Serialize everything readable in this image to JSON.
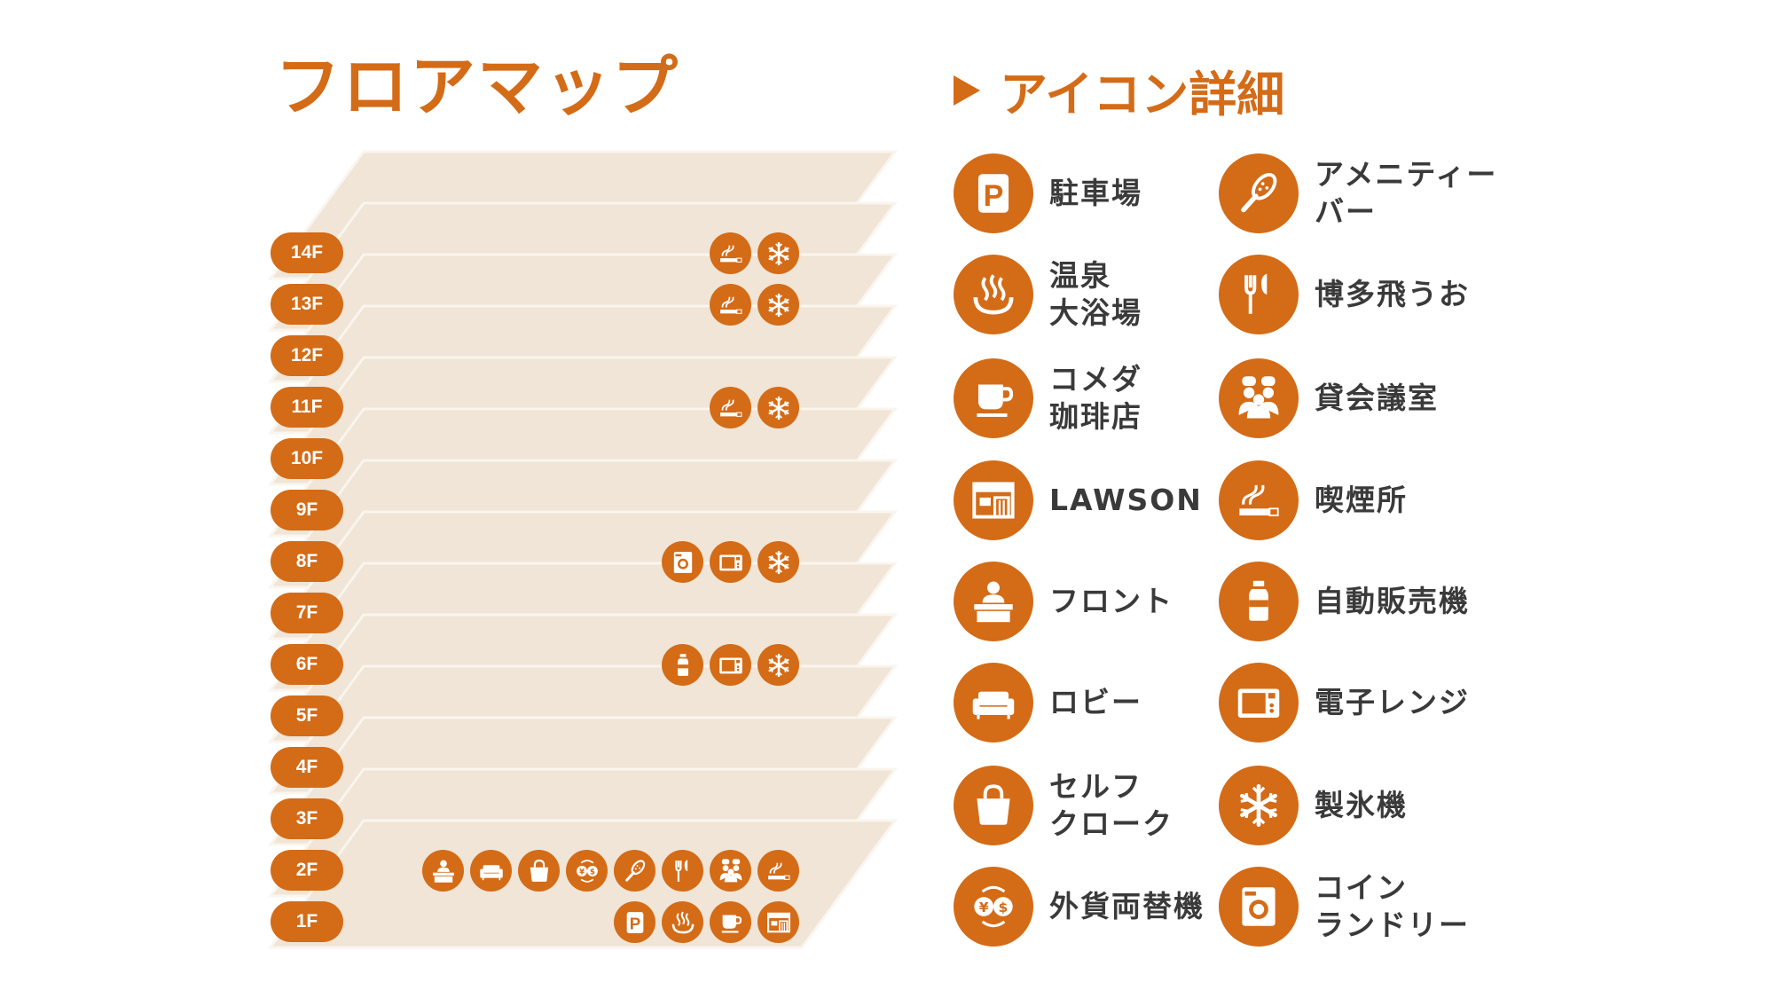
{
  "title": "フロアマップ",
  "legend_title": "アイコン詳細",
  "colors": {
    "accent": "#d46b17",
    "plate": "#f0e5d6",
    "text": "#3a3a3a"
  },
  "floors": [
    {
      "label": "14F",
      "icons": [
        "smoking",
        "ice"
      ]
    },
    {
      "label": "13F",
      "icons": [
        "smoking",
        "ice"
      ]
    },
    {
      "label": "12F",
      "icons": []
    },
    {
      "label": "11F",
      "icons": [
        "smoking",
        "ice"
      ]
    },
    {
      "label": "10F",
      "icons": []
    },
    {
      "label": "9F",
      "icons": []
    },
    {
      "label": "8F",
      "icons": [
        "laundry",
        "microwave",
        "ice"
      ]
    },
    {
      "label": "7F",
      "icons": []
    },
    {
      "label": "6F",
      "icons": [
        "vending",
        "microwave",
        "ice"
      ]
    },
    {
      "label": "5F",
      "icons": []
    },
    {
      "label": "4F",
      "icons": []
    },
    {
      "label": "3F",
      "icons": []
    },
    {
      "label": "2F",
      "icons": [
        "front",
        "lobby",
        "cloak",
        "exchange",
        "amenity",
        "restaurant",
        "meeting",
        "smoking"
      ]
    },
    {
      "label": "1F",
      "icons": [
        "parking",
        "onsen",
        "cafe",
        "lawson"
      ]
    }
  ],
  "legend": [
    {
      "icon": "parking",
      "label": "駐車場"
    },
    {
      "icon": "amenity",
      "label": "アメニティー\nバー"
    },
    {
      "icon": "onsen",
      "label": "温泉\n大浴場"
    },
    {
      "icon": "restaurant",
      "label": "博多飛うお"
    },
    {
      "icon": "cafe",
      "label": "コメダ\n珈琲店"
    },
    {
      "icon": "meeting",
      "label": "貸会議室"
    },
    {
      "icon": "lawson",
      "label": "LAWSON"
    },
    {
      "icon": "smoking",
      "label": "喫煙所"
    },
    {
      "icon": "front",
      "label": "フロント"
    },
    {
      "icon": "vending",
      "label": "自動販売機"
    },
    {
      "icon": "lobby",
      "label": "ロビー"
    },
    {
      "icon": "microwave",
      "label": "電子レンジ"
    },
    {
      "icon": "cloak",
      "label": "セルフ\nクローク"
    },
    {
      "icon": "ice",
      "label": "製氷機"
    },
    {
      "icon": "exchange",
      "label": "外貨両替機"
    },
    {
      "icon": "laundry",
      "label": "コイン\nランドリー"
    }
  ]
}
